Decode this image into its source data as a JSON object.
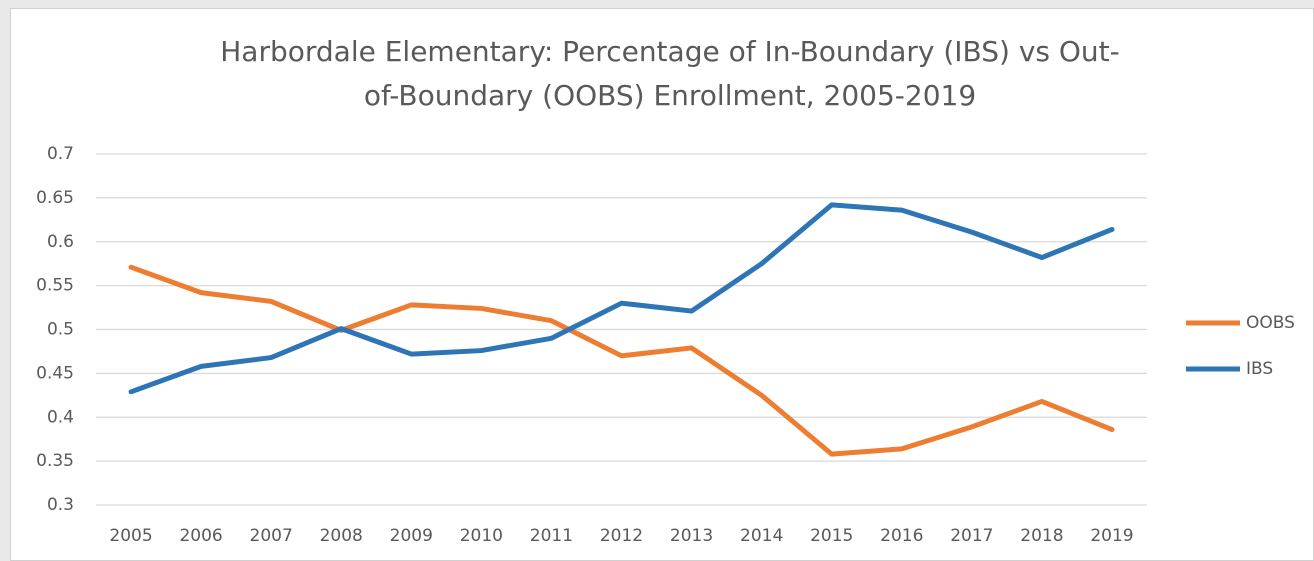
{
  "chart_data": {
    "type": "line",
    "title": "Harbordale Elementary: Percentage of In-Boundary (IBS) vs Out-of-Boundary (OOBS) Enrollment, 2005-2019",
    "categories": [
      "2005",
      "2006",
      "2007",
      "2008",
      "2009",
      "2010",
      "2011",
      "2012",
      "2013",
      "2014",
      "2015",
      "2016",
      "2017",
      "2018",
      "2019"
    ],
    "series": [
      {
        "name": "OOBS",
        "color": "#ed7d31",
        "values": [
          0.571,
          0.542,
          0.532,
          0.499,
          0.528,
          0.524,
          0.51,
          0.47,
          0.479,
          0.425,
          0.358,
          0.364,
          0.389,
          0.418,
          0.386
        ]
      },
      {
        "name": "IBS",
        "color": "#2e75b6",
        "values": [
          0.429,
          0.458,
          0.468,
          0.501,
          0.472,
          0.476,
          0.49,
          0.53,
          0.521,
          0.575,
          0.642,
          0.636,
          0.611,
          0.582,
          0.614
        ]
      }
    ],
    "ylim": [
      0.3,
      0.7
    ],
    "yticks": [
      0.3,
      0.35,
      0.4,
      0.45,
      0.5,
      0.55,
      0.6,
      0.65,
      0.7
    ],
    "grid": true,
    "legend": "right"
  }
}
